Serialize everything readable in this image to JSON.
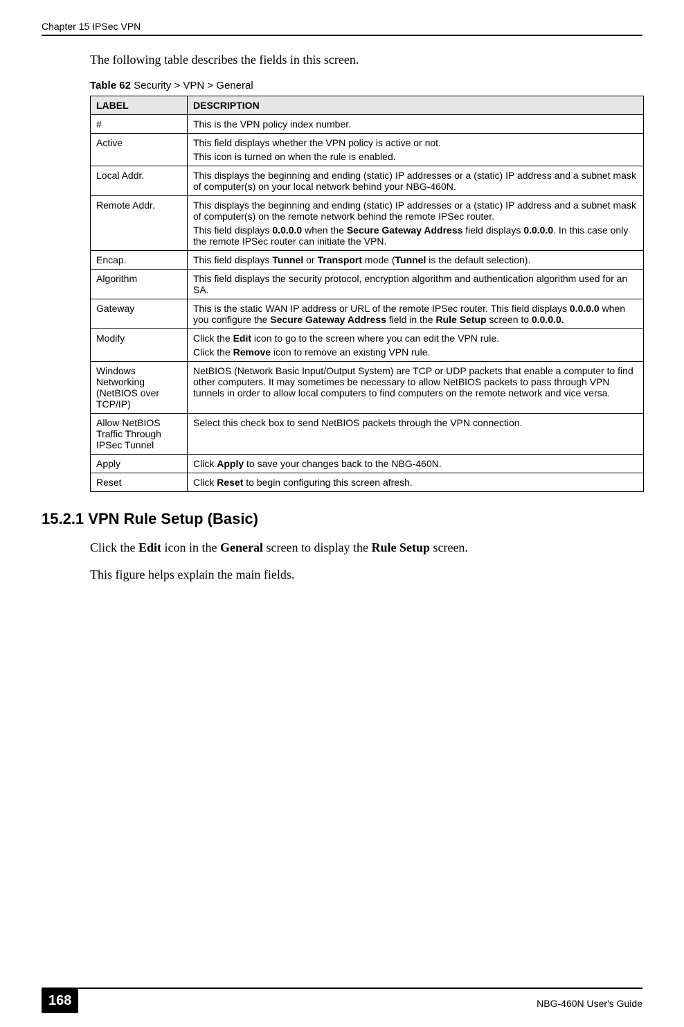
{
  "header": {
    "chapter": "Chapter 15 IPSec VPN"
  },
  "intro": "The following table describes the fields in this screen.",
  "table": {
    "caption_label": "Table 62",
    "caption_rest": "   Security > VPN > General",
    "columns": [
      "LABEL",
      "DESCRIPTION"
    ],
    "rows": [
      {
        "label": "#",
        "desc": "This is the VPN policy index number."
      },
      {
        "label": "Active",
        "desc": "This field displays whether the VPN policy is active or not.\nThis icon is turned on when the rule is enabled."
      },
      {
        "label": "Local Addr.",
        "desc": "This displays the beginning and ending (static) IP addresses or a (static) IP address and a subnet mask of computer(s) on your local network behind your NBG-460N."
      },
      {
        "label": "Remote Addr.",
        "desc": "This displays the beginning and ending (static) IP addresses or a (static) IP address and a subnet mask of computer(s) on the remote network behind the remote IPSec router.\nThis field displays <b>0.0.0.0</b> when the <b>Secure Gateway Address</b> field displays <b>0.0.0.0</b>. In this case only the remote IPSec router can initiate the VPN."
      },
      {
        "label": "Encap.",
        "desc": "This field displays <b>Tunnel</b> or <b>Transport</b> mode (<b>Tunnel</b> is the default selection)."
      },
      {
        "label": "Algorithm",
        "desc": "This field displays the security protocol, encryption algorithm and authentication algorithm used for an SA."
      },
      {
        "label": "Gateway",
        "desc": "This is the static WAN IP address or URL of the remote IPSec router. This field displays <b>0.0.0.0</b> when you configure the <b>Secure Gateway Address</b> field in the <b>Rule Setup</b> screen to <b>0.0.0.0.</b>"
      },
      {
        "label": "Modify",
        "desc": "Click the <b>Edit</b> icon to go to the screen where you can edit the VPN rule.\nClick the <b>Remove</b> icon to remove an existing VPN rule."
      },
      {
        "label": "Windows Networking (NetBIOS over TCP/IP)",
        "desc": "NetBIOS (Network Basic Input/Output System) are TCP or UDP packets that enable a computer to find other computers. It may sometimes be necessary to allow NetBIOS packets to pass through VPN tunnels in order to allow local computers to find computers on the remote network and vice versa."
      },
      {
        "label": "Allow NetBIOS Traffic Through IPSec Tunnel",
        "desc": "Select this check box to send NetBIOS packets through the VPN connection."
      },
      {
        "label": "Apply",
        "desc": "Click <b>Apply</b> to save your changes back to the NBG-460N."
      },
      {
        "label": "Reset",
        "desc": "Click <b>Reset</b> to begin configuring this screen afresh."
      }
    ]
  },
  "section": {
    "heading": "15.2.1  VPN Rule Setup (Basic)",
    "p1_html": "Click the <b>Edit</b> icon in the <b>General</b> screen to display the <b>Rule Setup</b> screen.",
    "p2": "This figure helps explain the main fields."
  },
  "footer": {
    "page": "168",
    "guide": "NBG-460N User's Guide"
  }
}
